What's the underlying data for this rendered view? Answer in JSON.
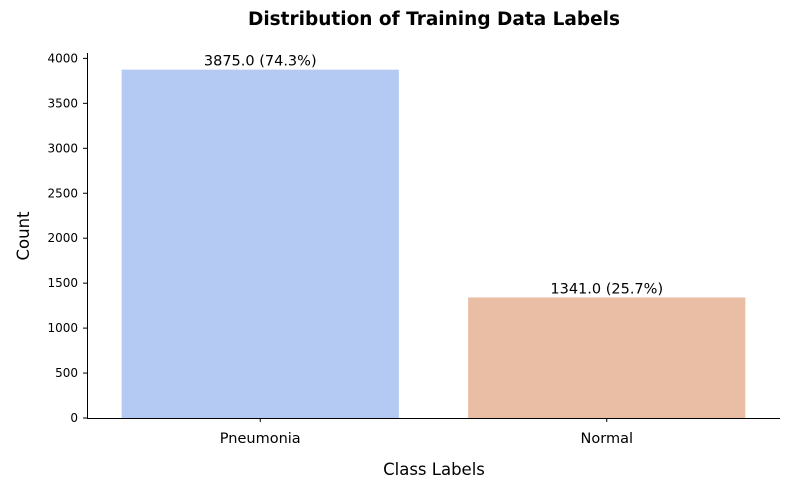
{
  "chart_data": {
    "type": "bar",
    "title": "Distribution of Training Data Labels",
    "xlabel": "Class Labels",
    "ylabel": "Count",
    "categories": [
      "Pneumonia",
      "Normal"
    ],
    "values": [
      3875,
      1341
    ],
    "data_labels": [
      "3875.0 (74.3%)",
      "1341.0 (25.7%)"
    ],
    "colors": [
      "#b5caf3",
      "#eabda5"
    ],
    "ylim": [
      0,
      4060
    ],
    "yticks": [
      0,
      500,
      1000,
      1500,
      2000,
      2500,
      3000,
      3500,
      4000
    ],
    "ytick_labels": [
      "0",
      "500",
      "1000",
      "1500",
      "2000",
      "2500",
      "3000",
      "3500",
      "4000"
    ],
    "grid": false,
    "legend": "none"
  }
}
